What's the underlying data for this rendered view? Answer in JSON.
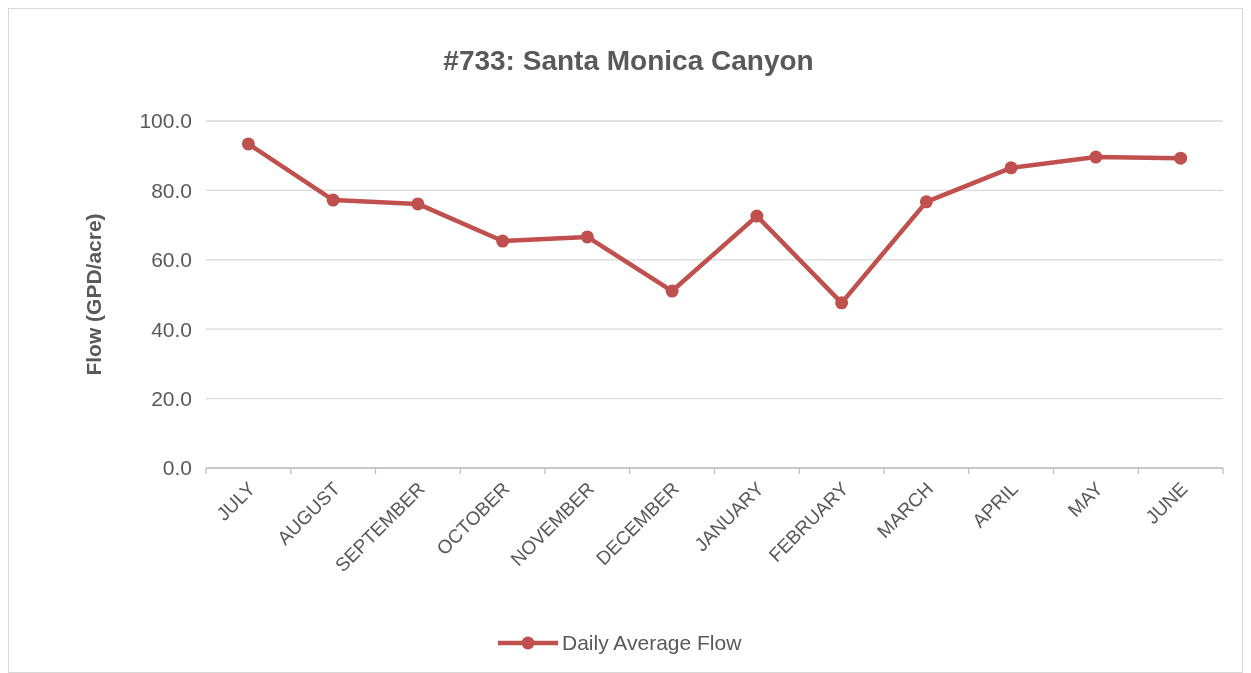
{
  "chart_data": {
    "type": "line",
    "title": "#733: Santa Monica Canyon",
    "ylabel": "Flow (GPD/acre)",
    "categories": [
      "JULY",
      "AUGUST",
      "SEPTEMBER",
      "OCTOBER",
      "NOVEMBER",
      "DECEMBER",
      "JANUARY",
      "FEBRUARY",
      "MARCH",
      "APRIL",
      "MAY",
      "JUNE"
    ],
    "series": [
      {
        "name": "Daily Average Flow",
        "color": "#c0504d",
        "values": [
          93.4,
          77.2,
          76.1,
          65.4,
          66.6,
          51.0,
          72.6,
          47.6,
          76.7,
          86.5,
          89.6,
          89.3
        ]
      }
    ],
    "ylim": [
      0,
      100
    ],
    "yticks": [
      {
        "value": 0,
        "label": "0.0"
      },
      {
        "value": 20,
        "label": "20.0"
      },
      {
        "value": 40,
        "label": "40.0"
      },
      {
        "value": 60,
        "label": "60.0"
      },
      {
        "value": 80,
        "label": "80.0"
      },
      {
        "value": 100,
        "label": "100.0"
      }
    ],
    "grid": "y",
    "legend": "bottom",
    "marker": "circle",
    "line_style": "solid"
  }
}
